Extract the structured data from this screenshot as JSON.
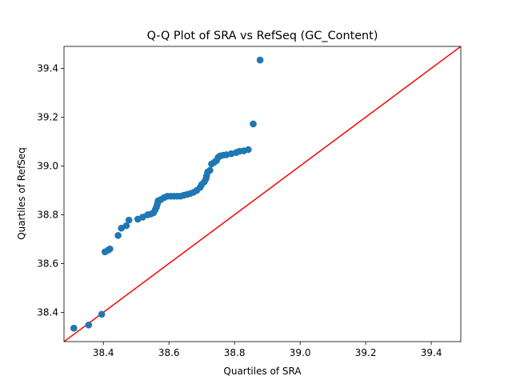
{
  "chart_data": {
    "type": "scatter",
    "title": "Q-Q Plot of SRA vs RefSeq (GC_Content)",
    "xlabel": "Quartiles of SRA",
    "ylabel": "Quartiles of RefSeq",
    "xlim": [
      38.28,
      39.49
    ],
    "ylim": [
      38.28,
      39.49
    ],
    "xticks": [
      "38.4",
      "38.6",
      "38.8",
      "39.0",
      "39.2",
      "39.4"
    ],
    "yticks": [
      "38.4",
      "38.6",
      "38.8",
      "39.0",
      "39.2",
      "39.4"
    ],
    "xtick_values": [
      38.4,
      38.6,
      38.8,
      39.0,
      39.2,
      39.4
    ],
    "ytick_values": [
      38.4,
      38.6,
      38.8,
      39.0,
      39.2,
      39.4
    ],
    "grid": false,
    "reference_line": {
      "from": [
        38.28,
        38.28
      ],
      "to": [
        39.49,
        39.49
      ],
      "color": "#ff0000"
    },
    "marker_color": "#1f77b4",
    "points": [
      [
        38.31,
        38.335
      ],
      [
        38.355,
        38.348
      ],
      [
        38.395,
        38.392
      ],
      [
        38.405,
        38.648
      ],
      [
        38.415,
        38.655
      ],
      [
        38.42,
        38.66
      ],
      [
        38.445,
        38.715
      ],
      [
        38.455,
        38.745
      ],
      [
        38.47,
        38.755
      ],
      [
        38.478,
        38.778
      ],
      [
        38.505,
        38.782
      ],
      [
        38.52,
        38.79
      ],
      [
        38.535,
        38.8
      ],
      [
        38.545,
        38.803
      ],
      [
        38.553,
        38.808
      ],
      [
        38.558,
        38.82
      ],
      [
        38.562,
        38.832
      ],
      [
        38.565,
        38.845
      ],
      [
        38.567,
        38.857
      ],
      [
        38.575,
        38.862
      ],
      [
        38.585,
        38.87
      ],
      [
        38.595,
        38.876
      ],
      [
        38.605,
        38.876
      ],
      [
        38.615,
        38.876
      ],
      [
        38.625,
        38.876
      ],
      [
        38.635,
        38.876
      ],
      [
        38.645,
        38.88
      ],
      [
        38.655,
        38.883
      ],
      [
        38.665,
        38.887
      ],
      [
        38.675,
        38.892
      ],
      [
        38.685,
        38.9
      ],
      [
        38.695,
        38.912
      ],
      [
        38.7,
        38.924
      ],
      [
        38.708,
        38.935
      ],
      [
        38.713,
        38.948
      ],
      [
        38.715,
        38.96
      ],
      [
        38.718,
        38.975
      ],
      [
        38.725,
        38.982
      ],
      [
        38.73,
        39.008
      ],
      [
        38.738,
        39.015
      ],
      [
        38.745,
        39.022
      ],
      [
        38.75,
        39.035
      ],
      [
        38.756,
        39.041
      ],
      [
        38.765,
        39.044
      ],
      [
        38.775,
        39.046
      ],
      [
        38.79,
        39.05
      ],
      [
        38.805,
        39.055
      ],
      [
        38.815,
        39.06
      ],
      [
        38.828,
        39.062
      ],
      [
        38.842,
        39.067
      ],
      [
        38.857,
        39.172
      ],
      [
        38.878,
        39.434
      ]
    ]
  }
}
